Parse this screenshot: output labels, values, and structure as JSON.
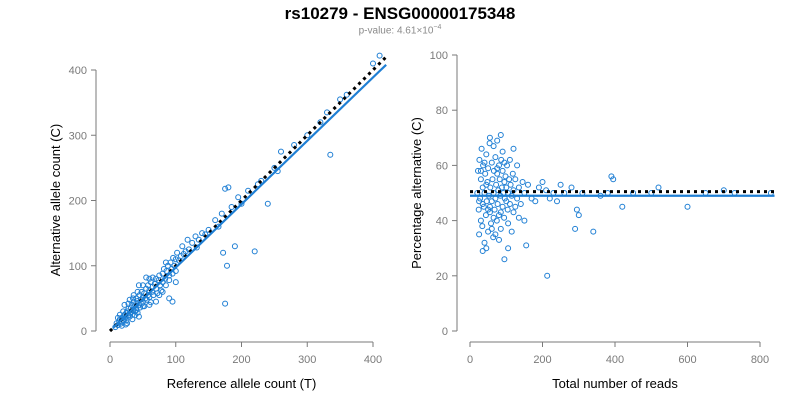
{
  "title": "rs10279 - ENSG00000175348",
  "subtitle": {
    "prefix": "p-value: ",
    "mantissa": "4.61",
    "times": "×",
    "base": "10",
    "exponent": "−4"
  },
  "colors": {
    "points": "#1f7fd4",
    "fit": "#1f7fd4",
    "reference": "#000000",
    "axis": "#7a7a7a"
  },
  "chart_data": [
    {
      "type": "scatter",
      "xlabel": "Reference allele count (T)",
      "ylabel": "Alternative allele count (C)",
      "xlim": [
        0,
        420
      ],
      "ylim": [
        0,
        420
      ],
      "xticks": [
        0,
        100,
        200,
        300,
        400
      ],
      "yticks": [
        0,
        100,
        200,
        300,
        400
      ],
      "reference_line": {
        "style": "dotted",
        "x": [
          0,
          420
        ],
        "y": [
          0,
          420
        ]
      },
      "fit_line": {
        "style": "solid",
        "x": [
          5,
          420
        ],
        "y": [
          5,
          408
        ]
      },
      "points": [
        [
          8,
          6
        ],
        [
          10,
          12
        ],
        [
          12,
          9
        ],
        [
          14,
          15
        ],
        [
          15,
          18
        ],
        [
          16,
          11
        ],
        [
          18,
          20
        ],
        [
          18,
          14
        ],
        [
          20,
          22
        ],
        [
          20,
          17
        ],
        [
          22,
          19
        ],
        [
          22,
          25
        ],
        [
          24,
          21
        ],
        [
          25,
          28
        ],
        [
          25,
          16
        ],
        [
          26,
          30
        ],
        [
          28,
          24
        ],
        [
          28,
          34
        ],
        [
          30,
          27
        ],
        [
          30,
          22
        ],
        [
          32,
          36
        ],
        [
          32,
          29
        ],
        [
          33,
          40
        ],
        [
          34,
          25
        ],
        [
          35,
          32
        ],
        [
          36,
          45
        ],
        [
          37,
          38
        ],
        [
          38,
          30
        ],
        [
          40,
          42
        ],
        [
          40,
          35
        ],
        [
          40,
          50
        ],
        [
          42,
          28
        ],
        [
          42,
          46
        ],
        [
          44,
          40
        ],
        [
          45,
          55
        ],
        [
          46,
          36
        ],
        [
          47,
          48
        ],
        [
          48,
          60
        ],
        [
          48,
          42
        ],
        [
          50,
          52
        ],
        [
          50,
          45
        ],
        [
          52,
          38
        ],
        [
          52,
          58
        ],
        [
          54,
          50
        ],
        [
          55,
          65
        ],
        [
          56,
          48
        ],
        [
          58,
          55
        ],
        [
          58,
          70
        ],
        [
          60,
          62
        ],
        [
          60,
          52
        ],
        [
          62,
          44
        ],
        [
          62,
          75
        ],
        [
          64,
          60
        ],
        [
          65,
          68
        ],
        [
          66,
          55
        ],
        [
          68,
          72
        ],
        [
          70,
          80
        ],
        [
          70,
          65
        ],
        [
          72,
          58
        ],
        [
          74,
          78
        ],
        [
          75,
          85
        ],
        [
          76,
          70
        ],
        [
          78,
          62
        ],
        [
          80,
          88
        ],
        [
          80,
          75
        ],
        [
          82,
          95
        ],
        [
          84,
          80
        ],
        [
          85,
          70
        ],
        [
          86,
          92
        ],
        [
          88,
          100
        ],
        [
          90,
          85
        ],
        [
          90,
          78
        ],
        [
          92,
          105
        ],
        [
          94,
          95
        ],
        [
          95,
          88
        ],
        [
          96,
          112
        ],
        [
          98,
          100
        ],
        [
          100,
          110
        ],
        [
          100,
          92
        ],
        [
          102,
          120
        ],
        [
          105,
          108
        ],
        [
          108,
          115
        ],
        [
          110,
          130
        ],
        [
          112,
          118
        ],
        [
          115,
          122
        ],
        [
          118,
          140
        ],
        [
          120,
          125
        ],
        [
          125,
          135
        ],
        [
          130,
          145
        ],
        [
          132,
          128
        ],
        [
          135,
          140
        ],
        [
          140,
          150
        ],
        [
          145,
          148
        ],
        [
          150,
          155
        ],
        [
          160,
          170
        ],
        [
          165,
          160
        ],
        [
          170,
          180
        ],
        [
          175,
          42
        ],
        [
          175,
          218
        ],
        [
          172,
          120
        ],
        [
          178,
          100
        ],
        [
          180,
          220
        ],
        [
          185,
          190
        ],
        [
          190,
          130
        ],
        [
          195,
          205
        ],
        [
          200,
          195
        ],
        [
          210,
          215
        ],
        [
          220,
          122
        ],
        [
          225,
          225
        ],
        [
          230,
          230
        ],
        [
          240,
          195
        ],
        [
          250,
          250
        ],
        [
          255,
          245
        ],
        [
          260,
          275
        ],
        [
          280,
          285
        ],
        [
          300,
          300
        ],
        [
          320,
          320
        ],
        [
          335,
          270
        ],
        [
          330,
          335
        ],
        [
          350,
          355
        ],
        [
          360,
          362
        ],
        [
          400,
          410
        ],
        [
          410,
          422
        ],
        [
          22,
          40
        ],
        [
          30,
          48
        ],
        [
          36,
          55
        ],
        [
          40,
          32
        ],
        [
          44,
          70
        ],
        [
          50,
          38
        ],
        [
          55,
          82
        ],
        [
          60,
          40
        ],
        [
          65,
          82
        ],
        [
          70,
          45
        ],
        [
          75,
          55
        ],
        [
          80,
          60
        ],
        [
          85,
          105
        ],
        [
          90,
          50
        ],
        [
          95,
          45
        ],
        [
          100,
          75
        ],
        [
          60,
          80
        ],
        [
          50,
          70
        ],
        [
          42,
          60
        ],
        [
          35,
          50
        ],
        [
          28,
          42
        ],
        [
          20,
          30
        ],
        [
          15,
          25
        ],
        [
          12,
          20
        ],
        [
          26,
          12
        ],
        [
          34,
          18
        ],
        [
          44,
          22
        ],
        [
          18,
          8
        ],
        [
          24,
          10
        ],
        [
          38,
          24
        ]
      ]
    },
    {
      "type": "scatter",
      "xlabel": "Total number of reads",
      "ylabel": "Percentage alternative (C)",
      "xlim": [
        0,
        840
      ],
      "ylim": [
        0,
        100
      ],
      "xticks": [
        0,
        200,
        400,
        600,
        800
      ],
      "yticks": [
        0,
        20,
        40,
        60,
        80,
        100
      ],
      "reference_line": {
        "style": "dotted",
        "x": [
          0,
          840
        ],
        "y": [
          50.5,
          50.5
        ]
      },
      "fit_line": {
        "style": "solid",
        "x": [
          0,
          840
        ],
        "y": [
          49,
          49
        ]
      },
      "points": [
        [
          20,
          50
        ],
        [
          22,
          58
        ],
        [
          24,
          44
        ],
        [
          25,
          35
        ],
        [
          26,
          62
        ],
        [
          28,
          48
        ],
        [
          30,
          40
        ],
        [
          30,
          55
        ],
        [
          32,
          66
        ],
        [
          34,
          38
        ],
        [
          35,
          52
        ],
        [
          36,
          60
        ],
        [
          38,
          45
        ],
        [
          40,
          32
        ],
        [
          40,
          50
        ],
        [
          42,
          57
        ],
        [
          44,
          42
        ],
        [
          45,
          64
        ],
        [
          46,
          47
        ],
        [
          48,
          54
        ],
        [
          50,
          36
        ],
        [
          50,
          59
        ],
        [
          52,
          49
        ],
        [
          54,
          68
        ],
        [
          55,
          43
        ],
        [
          56,
          52
        ],
        [
          58,
          39
        ],
        [
          60,
          61
        ],
        [
          60,
          47
        ],
        [
          62,
          55
        ],
        [
          64,
          34
        ],
        [
          65,
          50
        ],
        [
          66,
          58
        ],
        [
          68,
          44
        ],
        [
          70,
          63
        ],
        [
          70,
          48
        ],
        [
          72,
          53
        ],
        [
          74,
          40
        ],
        [
          75,
          57
        ],
        [
          76,
          46
        ],
        [
          78,
          51
        ],
        [
          80,
          60
        ],
        [
          80,
          42
        ],
        [
          82,
          55
        ],
        [
          84,
          49
        ],
        [
          85,
          37
        ],
        [
          86,
          62
        ],
        [
          88,
          52
        ],
        [
          90,
          45
        ],
        [
          90,
          58
        ],
        [
          92,
          50
        ],
        [
          94,
          41
        ],
        [
          95,
          54
        ],
        [
          96,
          48
        ],
        [
          98,
          56
        ],
        [
          100,
          47
        ],
        [
          100,
          52
        ],
        [
          102,
          60
        ],
        [
          104,
          44
        ],
        [
          105,
          50
        ],
        [
          108,
          55
        ],
        [
          110,
          46
        ],
        [
          112,
          53
        ],
        [
          115,
          49
        ],
        [
          118,
          57
        ],
        [
          120,
          43
        ],
        [
          120,
          51
        ],
        [
          125,
          55
        ],
        [
          130,
          48
        ],
        [
          135,
          52
        ],
        [
          140,
          46
        ],
        [
          145,
          54
        ],
        [
          150,
          40
        ],
        [
          150,
          50
        ],
        [
          155,
          31
        ],
        [
          160,
          53
        ],
        [
          170,
          48
        ],
        [
          180,
          47
        ],
        [
          190,
          52
        ],
        [
          200,
          54
        ],
        [
          210,
          51
        ],
        [
          213,
          20
        ],
        [
          220,
          48
        ],
        [
          230,
          50
        ],
        [
          240,
          47
        ],
        [
          250,
          53
        ],
        [
          260,
          50
        ],
        [
          280,
          52
        ],
        [
          290,
          37
        ],
        [
          295,
          44
        ],
        [
          300,
          42
        ],
        [
          310,
          50
        ],
        [
          340,
          36
        ],
        [
          360,
          49
        ],
        [
          380,
          50
        ],
        [
          390,
          56
        ],
        [
          395,
          55
        ],
        [
          420,
          45
        ],
        [
          450,
          50
        ],
        [
          500,
          50
        ],
        [
          520,
          52
        ],
        [
          600,
          45
        ],
        [
          650,
          50
        ],
        [
          700,
          51
        ],
        [
          730,
          50
        ],
        [
          830,
          50
        ],
        [
          35,
          29
        ],
        [
          45,
          30
        ],
        [
          55,
          70
        ],
        [
          65,
          67
        ],
        [
          75,
          69
        ],
        [
          85,
          71
        ],
        [
          95,
          26
        ],
        [
          105,
          30
        ],
        [
          30,
          58
        ],
        [
          40,
          61
        ],
        [
          50,
          44
        ],
        [
          60,
          37
        ],
        [
          70,
          35
        ],
        [
          80,
          33
        ],
        [
          90,
          65
        ],
        [
          110,
          62
        ],
        [
          120,
          66
        ],
        [
          130,
          60
        ],
        [
          25,
          47
        ],
        [
          35,
          46
        ],
        [
          45,
          53
        ],
        [
          55,
          45
        ],
        [
          65,
          41
        ],
        [
          75,
          59
        ],
        [
          85,
          43
        ],
        [
          95,
          61
        ],
        [
          105,
          39
        ],
        [
          115,
          36
        ],
        [
          125,
          45
        ],
        [
          135,
          41
        ]
      ]
    }
  ]
}
